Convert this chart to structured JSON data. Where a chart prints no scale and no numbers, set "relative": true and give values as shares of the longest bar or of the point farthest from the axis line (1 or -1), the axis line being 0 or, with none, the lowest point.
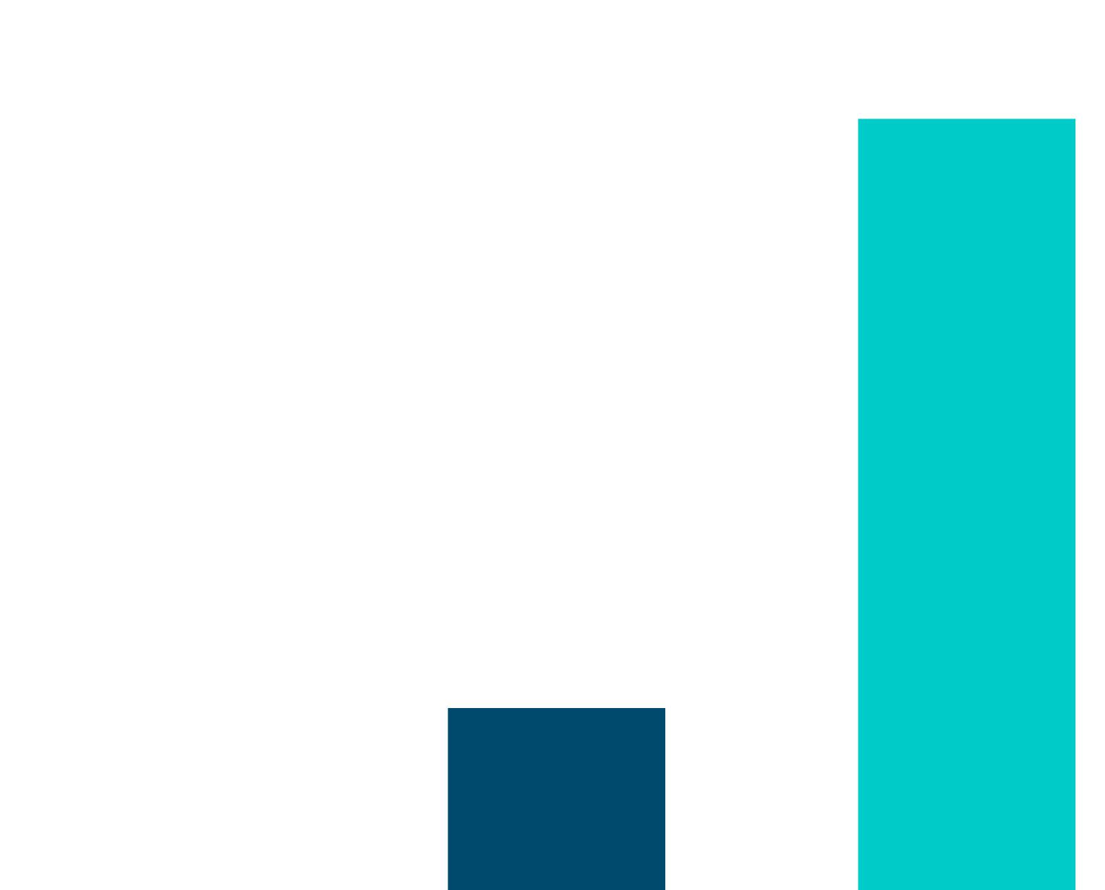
{
  "chart_data": {
    "type": "bar",
    "relative": true,
    "categories": [
      null,
      null
    ],
    "series": [
      {
        "colors": [
          "#004a6e",
          "#00cbc8"
        ],
        "values": [
          0.236,
          1
        ]
      }
    ],
    "legend": false
  }
}
